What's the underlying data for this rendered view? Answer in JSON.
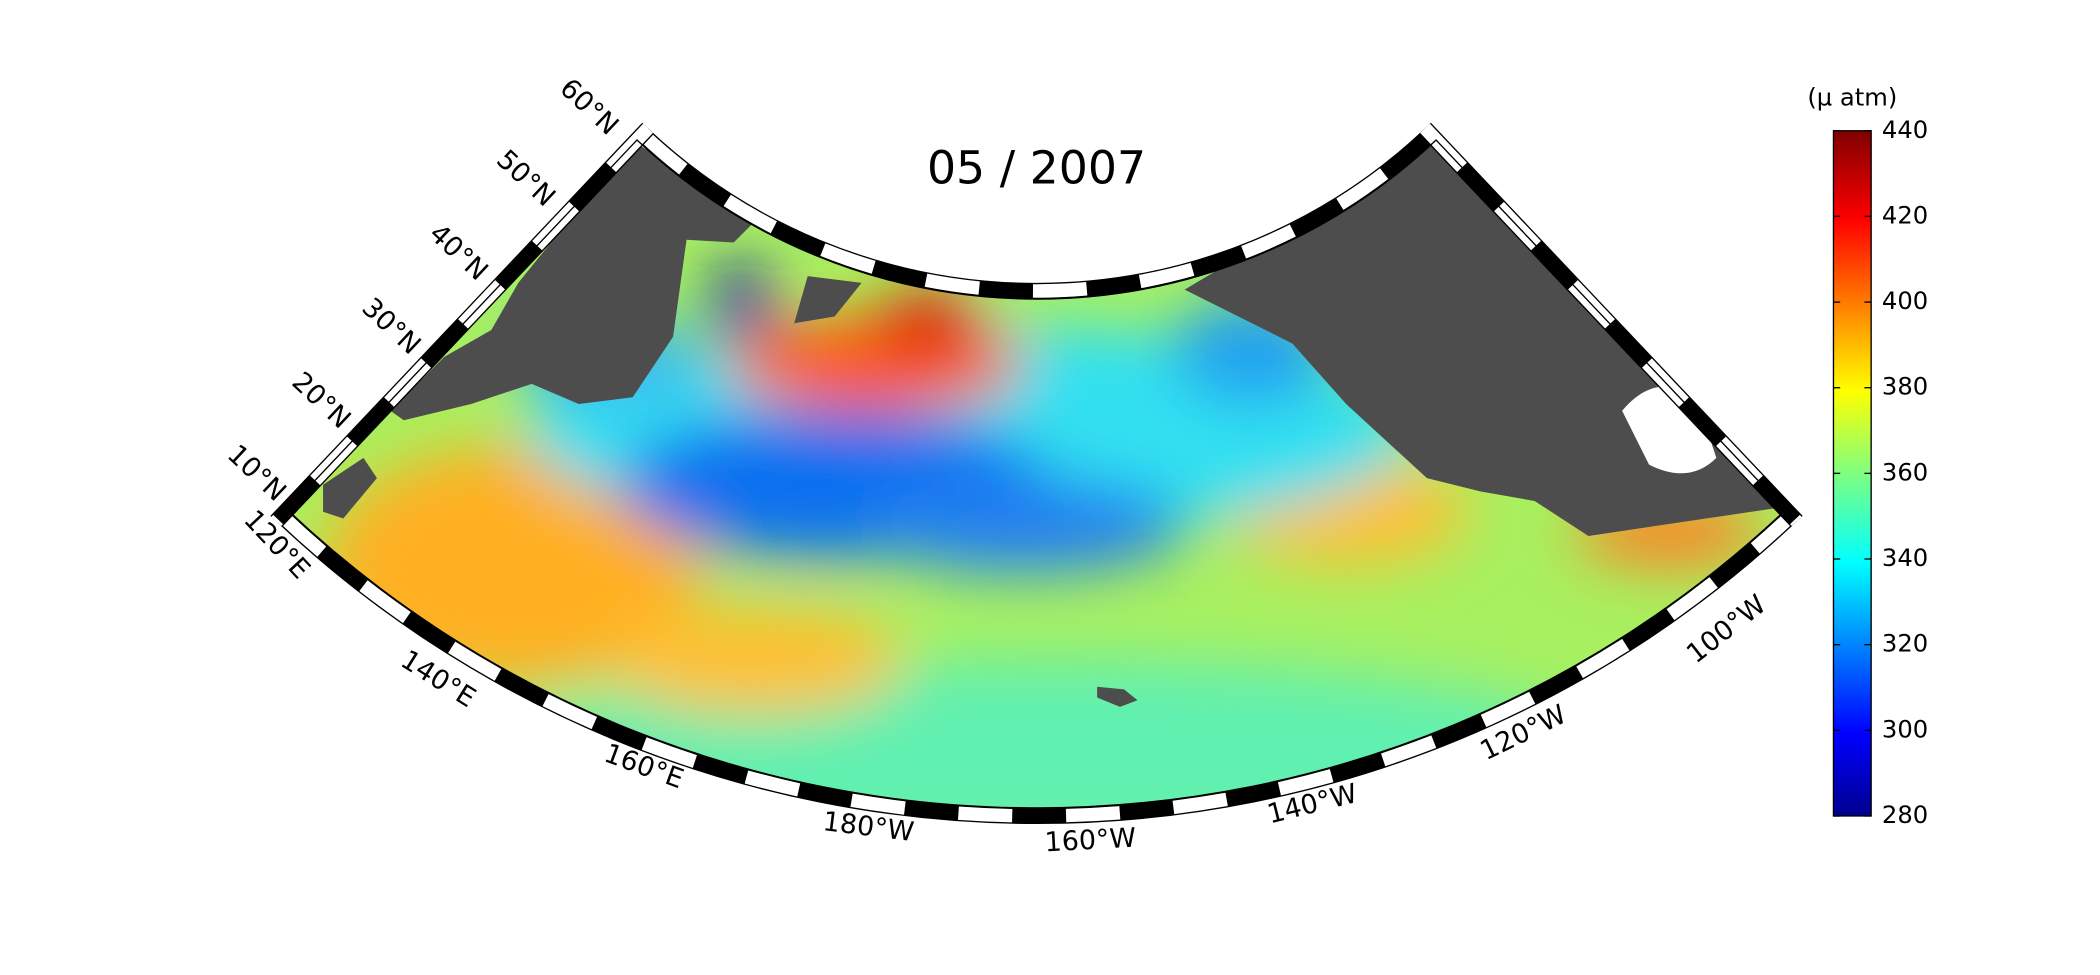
{
  "title": "05 / 2007",
  "colorbar": {
    "label": "(µ atm)",
    "lim": [
      280,
      440
    ],
    "ticks": [
      280,
      300,
      320,
      340,
      360,
      380,
      400,
      420,
      440
    ]
  },
  "lat_labels": [
    "10°N",
    "20°N",
    "30°N",
    "40°N",
    "50°N",
    "60°N"
  ],
  "lon_labels": [
    "120°E",
    "140°E",
    "160°E",
    "180°W",
    "160°W",
    "140°W",
    "120°W",
    "100°W"
  ]
}
